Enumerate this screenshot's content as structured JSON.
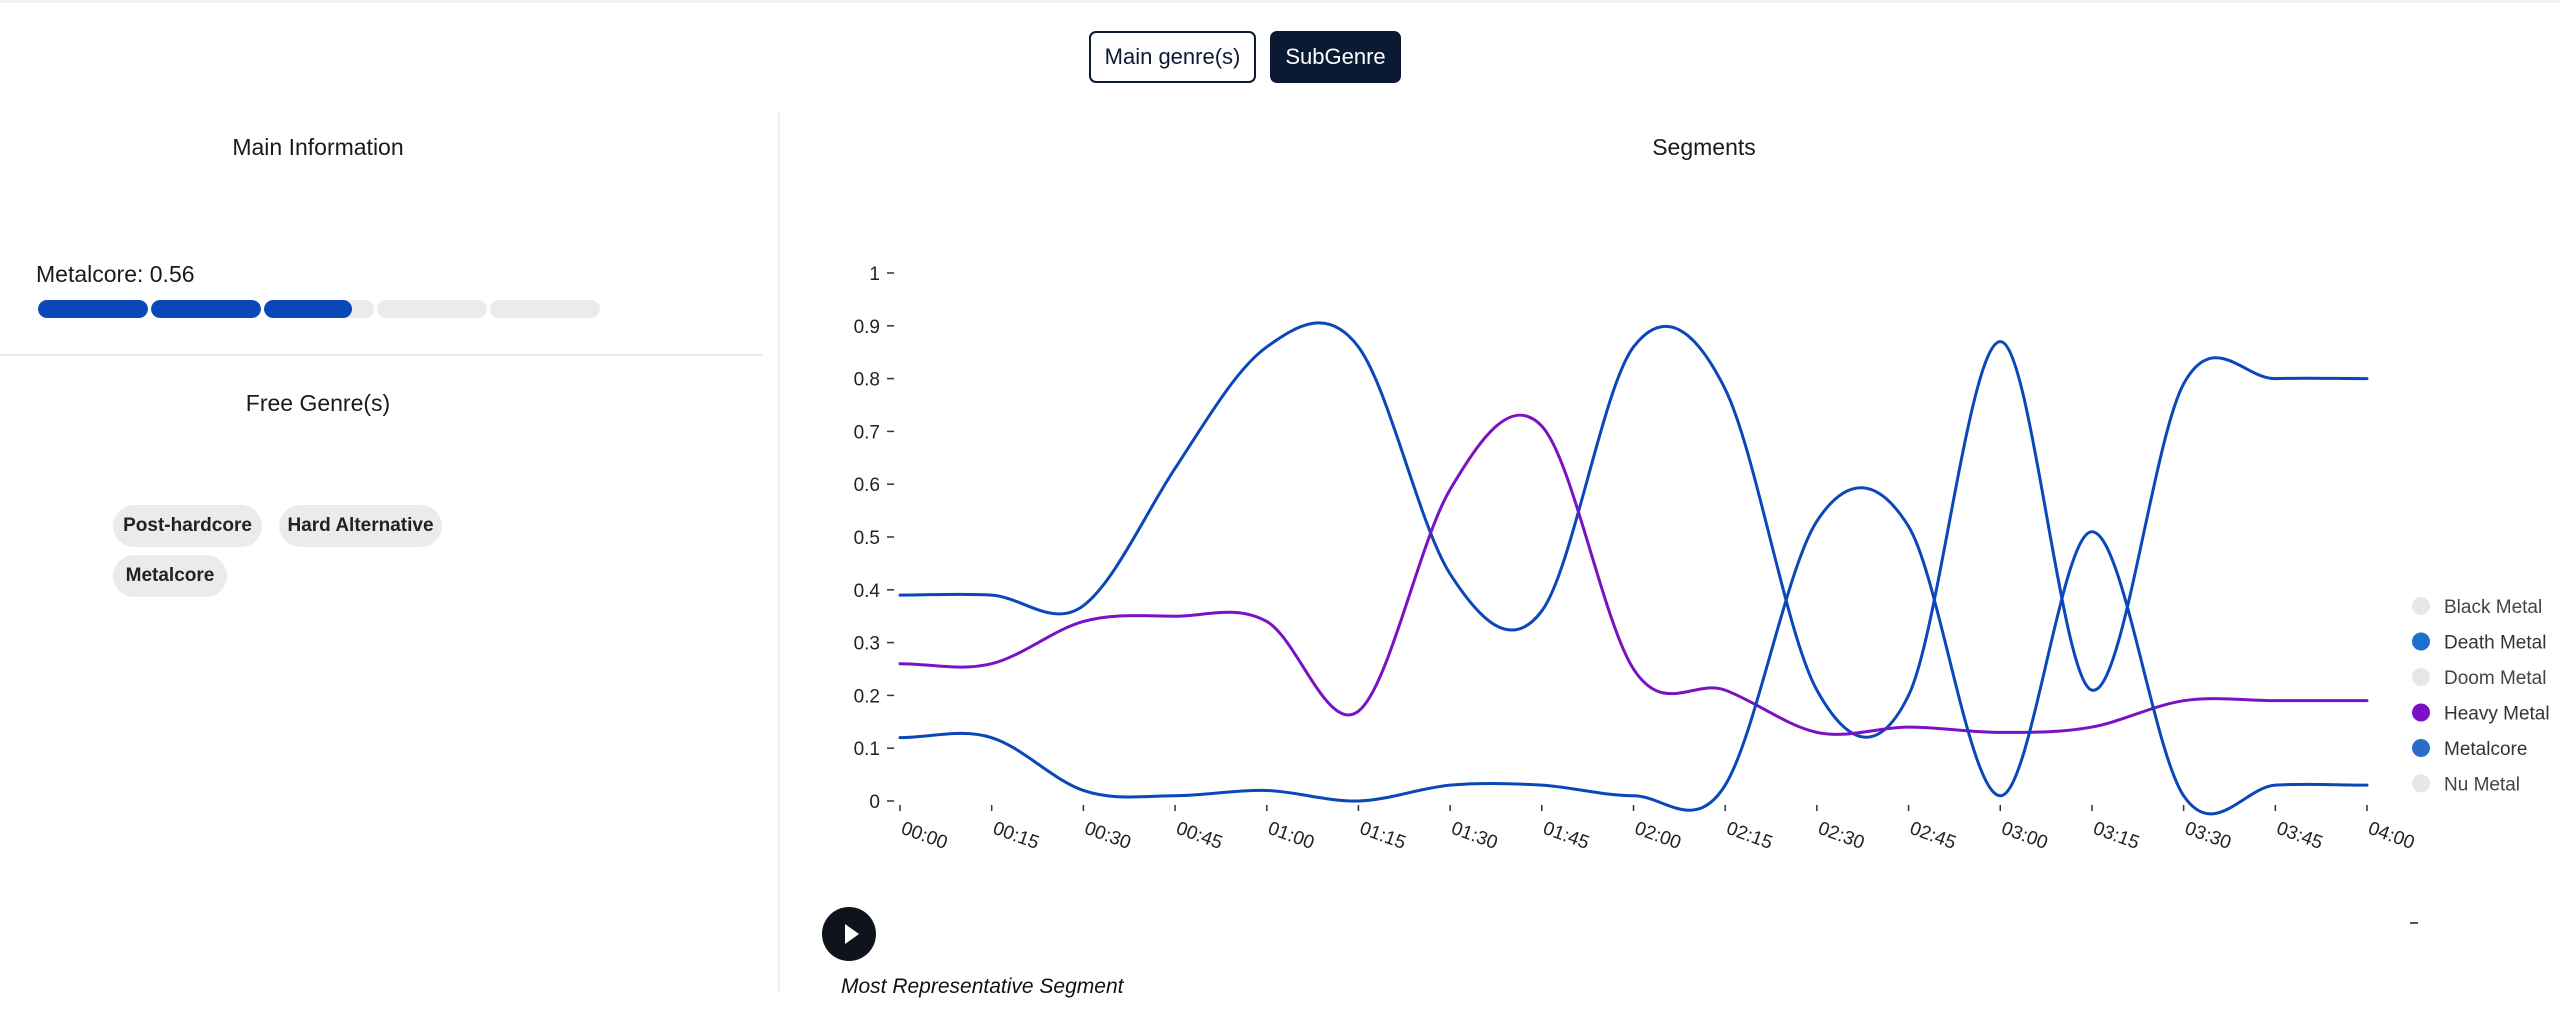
{
  "toggle": {
    "main_label": "Main genre(s)",
    "sub_label": "SubGenre",
    "active": "SubGenre"
  },
  "main_info": {
    "title": "Main Information",
    "metric_label": "Metalcore: 0.56",
    "metric_value": 0.56,
    "segments": 5
  },
  "free_genres": {
    "title": "Free Genre(s)",
    "tags": [
      "Post-hardcore",
      "Hard Alternative",
      "Metalcore"
    ]
  },
  "segments_panel": {
    "title": "Segments",
    "player_caption": "Most Representative Segment"
  },
  "colors": {
    "accent_dark": "#0b1a33",
    "bar_fill": "#0a47b8",
    "bar_track": "#ebebeb",
    "death_metal": "#1f6fd0",
    "heavy_metal": "#7a12c4",
    "metalcore": "#1f6fd0",
    "inactive": "#e6e6e6"
  },
  "chart_data": {
    "type": "line",
    "x": [
      "00:00",
      "00:15",
      "00:30",
      "00:45",
      "01:00",
      "01:15",
      "01:30",
      "01:45",
      "02:00",
      "02:15",
      "02:30",
      "02:45",
      "03:00",
      "03:15",
      "03:30",
      "03:45",
      "04:00"
    ],
    "ylim": [
      0,
      1
    ],
    "yticks": [
      "0",
      "0.1",
      "0.2",
      "0.3",
      "0.4",
      "0.5",
      "0.6",
      "0.7",
      "0.8",
      "0.9",
      "1"
    ],
    "legend_position": "right",
    "legend": [
      {
        "name": "Black Metal",
        "active": false,
        "color": "#e6e6e6"
      },
      {
        "name": "Death Metal",
        "active": true,
        "color": "#1f6fd0"
      },
      {
        "name": "Doom Metal",
        "active": false,
        "color": "#e6e6e6"
      },
      {
        "name": "Heavy Metal",
        "active": true,
        "color": "#7a12c4"
      },
      {
        "name": "Metalcore",
        "active": true,
        "color": "#2a6dc9"
      },
      {
        "name": "Nu Metal",
        "active": false,
        "color": "#e6e6e6"
      }
    ],
    "series": [
      {
        "name": "Metalcore",
        "color": "#0a47b8",
        "values": [
          0.39,
          0.39,
          0.37,
          0.63,
          0.86,
          0.86,
          0.43,
          0.36,
          0.86,
          0.78,
          0.21,
          0.2,
          0.87,
          0.21,
          0.79,
          0.8,
          0.8
        ]
      },
      {
        "name": "Heavy Metal",
        "color": "#7a12c4",
        "values": [
          0.26,
          0.26,
          0.34,
          0.35,
          0.34,
          0.17,
          0.59,
          0.71,
          0.25,
          0.21,
          0.13,
          0.14,
          0.13,
          0.14,
          0.19,
          0.19,
          0.19
        ]
      },
      {
        "name": "Death Metal",
        "color": "#0a47b8",
        "values": [
          0.12,
          0.12,
          0.02,
          0.01,
          0.02,
          0.0,
          0.03,
          0.03,
          0.01,
          0.03,
          0.53,
          0.52,
          0.01,
          0.51,
          0.01,
          0.03,
          0.03
        ]
      }
    ]
  }
}
